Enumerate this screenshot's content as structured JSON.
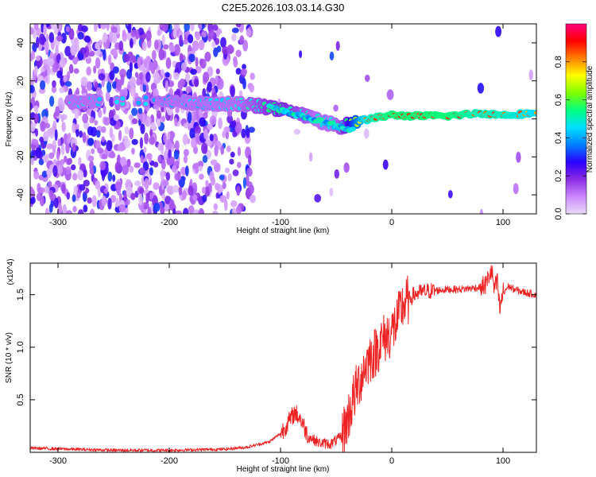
{
  "title": "C2E5.2026.103.03.14.G30",
  "chart_data": [
    {
      "type": "heatmap",
      "xlabel": "Height of straight line (km)",
      "ylabel": "Frequency (Hz)",
      "xlim": [
        -325,
        130
      ],
      "ylim": [
        -50,
        50
      ],
      "x_ticks": [
        -300,
        -200,
        -100,
        0,
        100
      ],
      "y_ticks": [
        -40,
        -20,
        0,
        20,
        40
      ],
      "colorbar": {
        "label": "Normalized spectral amplitude",
        "range": [
          0,
          1
        ],
        "ticks": [
          0.0,
          0.2,
          0.4,
          0.6,
          0.8
        ],
        "tick_labels": [
          "0.0",
          "0.2",
          "0.4",
          "0.6",
          "0.8"
        ],
        "colors": [
          "#e8dcf8",
          "#cc88ff",
          "#8a2be2",
          "#2a00ff",
          "#0080ff",
          "#00e0ff",
          "#00ff80",
          "#80ff00",
          "#ffff00",
          "#ff8000",
          "#ff0000",
          "#ff0080"
        ]
      },
      "ridge": {
        "x": [
          -280,
          -250,
          -200,
          -150,
          -120,
          -100,
          -80,
          -60,
          -45,
          -35,
          -20,
          0,
          20,
          50,
          80,
          100,
          130
        ],
        "y": [
          9,
          9,
          9,
          8,
          7,
          5,
          2,
          -2,
          -4,
          -2,
          0,
          2,
          1.5,
          1.5,
          3,
          2,
          3
        ],
        "amplitude": [
          0.45,
          0.45,
          0.4,
          0.45,
          0.5,
          0.55,
          0.5,
          0.45,
          0.5,
          0.65,
          0.85,
          0.9,
          0.9,
          0.9,
          0.85,
          0.85,
          0.8
        ]
      }
    },
    {
      "type": "line",
      "xlabel": "Height of straight line (km)",
      "ylabel": "SNR (10 * v/v)",
      "y_multiplier": "(x10^4)",
      "xlim": [
        -325,
        130
      ],
      "ylim": [
        0,
        1.8
      ],
      "x_ticks": [
        -300,
        -200,
        -100,
        0,
        100
      ],
      "y_ticks": [
        0.5,
        1.0,
        1.5
      ],
      "y_tick_labels": [
        "0.5",
        "1.0",
        "1.5"
      ],
      "color": "#ee2222",
      "x": [
        -325,
        -250,
        -200,
        -150,
        -130,
        -110,
        -100,
        -92,
        -87,
        -82,
        -75,
        -65,
        -55,
        -45,
        -40,
        -35,
        -30,
        -25,
        -20,
        -15,
        -10,
        -5,
        0,
        5,
        10,
        15,
        20,
        25,
        30,
        40,
        50,
        60,
        70,
        80,
        85,
        88,
        90,
        92,
        95,
        97,
        100,
        105,
        110,
        120,
        130
      ],
      "y": [
        0.04,
        0.02,
        0.02,
        0.03,
        0.05,
        0.1,
        0.18,
        0.3,
        0.38,
        0.32,
        0.15,
        0.09,
        0.08,
        0.15,
        0.3,
        0.5,
        0.65,
        0.8,
        0.9,
        0.95,
        1.05,
        1.1,
        1.15,
        1.25,
        1.4,
        1.45,
        1.5,
        1.52,
        1.53,
        1.54,
        1.55,
        1.55,
        1.56,
        1.57,
        1.6,
        1.7,
        1.72,
        1.55,
        1.62,
        1.35,
        1.52,
        1.58,
        1.55,
        1.52,
        1.5
      ]
    }
  ]
}
